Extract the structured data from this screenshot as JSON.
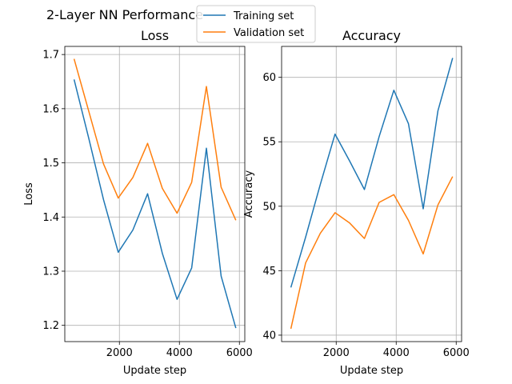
{
  "figure": {
    "suptitle": "2-Layer NN Performance",
    "legend": {
      "placement": "top-center",
      "entries": [
        {
          "label": "Training set",
          "color": "#1f77b4"
        },
        {
          "label": "Validation set",
          "color": "#ff7f0e"
        }
      ]
    }
  },
  "chart_data": [
    {
      "type": "line",
      "title": "Loss",
      "xlabel": "Update step",
      "ylabel": "Loss",
      "xlim": [
        180,
        6180
      ],
      "ylim": [
        1.17,
        1.715
      ],
      "xticks": [
        2000,
        4000,
        6000
      ],
      "yticks": [
        1.2,
        1.3,
        1.4,
        1.5,
        1.6,
        1.7
      ],
      "ytick_labels": [
        "1.2",
        "1.3",
        "1.4",
        "1.5",
        "1.6",
        "1.7"
      ],
      "grid": true,
      "x": [
        490,
        980,
        1470,
        1960,
        2450,
        2940,
        3430,
        3920,
        4410,
        4900,
        5390,
        5880
      ],
      "series": [
        {
          "name": "Training set",
          "color": "#1f77b4",
          "values": [
            1.654,
            1.545,
            1.432,
            1.335,
            1.376,
            1.443,
            1.333,
            1.248,
            1.306,
            1.527,
            1.291,
            1.195
          ]
        },
        {
          "name": "Validation set",
          "color": "#ff7f0e",
          "values": [
            1.692,
            1.595,
            1.498,
            1.435,
            1.473,
            1.536,
            1.453,
            1.407,
            1.464,
            1.641,
            1.455,
            1.394
          ]
        }
      ]
    },
    {
      "type": "line",
      "title": "Accuracy",
      "xlabel": "Update step",
      "ylabel": "Accuracy",
      "xlim": [
        180,
        6180
      ],
      "ylim": [
        39.5,
        62.4
      ],
      "xticks": [
        2000,
        4000,
        6000
      ],
      "yticks": [
        40,
        45,
        50,
        55,
        60
      ],
      "ytick_labels": [
        "40",
        "45",
        "50",
        "55",
        "60"
      ],
      "grid": true,
      "x": [
        490,
        980,
        1470,
        1960,
        2450,
        2940,
        3430,
        3920,
        4410,
        4900,
        5390,
        5880
      ],
      "series": [
        {
          "name": "Training set",
          "color": "#1f77b4",
          "values": [
            43.7,
            47.6,
            51.7,
            55.6,
            53.5,
            51.3,
            55.4,
            59.0,
            56.4,
            49.8,
            57.4,
            61.5
          ]
        },
        {
          "name": "Validation set",
          "color": "#ff7f0e",
          "values": [
            40.5,
            45.6,
            47.9,
            49.5,
            48.7,
            47.5,
            50.3,
            50.9,
            48.9,
            46.3,
            50.1,
            52.3
          ]
        }
      ]
    }
  ]
}
